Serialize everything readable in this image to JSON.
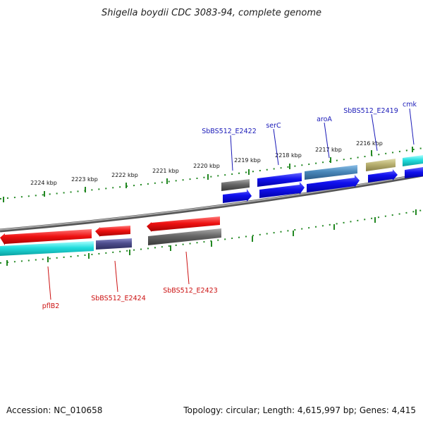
{
  "title": "Shigella boydii CDC 3083-94, complete genome",
  "footer": {
    "accession": "Accession: NC_010658",
    "topology": "Topology: circular; Length: 4,615,997 bp; Genes: 4,415"
  },
  "scale_labels": [
    "2224 kbp",
    "2223 kbp",
    "2222 kbp",
    "2221 kbp",
    "2220 kbp",
    "2219 kbp",
    "2218 kbp",
    "2217 kbp",
    "2216 kbp"
  ],
  "top_gene_labels": [
    "SbBS512_E2422",
    "serC",
    "aroA",
    "SbBS512_E2419",
    "cmk"
  ],
  "bottom_gene_labels": [
    "pflB2",
    "SbBS512_E2424",
    "SbBS512_E2423"
  ],
  "colors": {
    "red": "#ee1111",
    "cyan": "#22dddd",
    "blue": "#1111ee",
    "steelblue": "#4a88bb",
    "slate": "#4c4c8c",
    "gray": "#666666",
    "olive": "#b8b070",
    "tick": "#228822",
    "backbone": "#808080"
  }
}
